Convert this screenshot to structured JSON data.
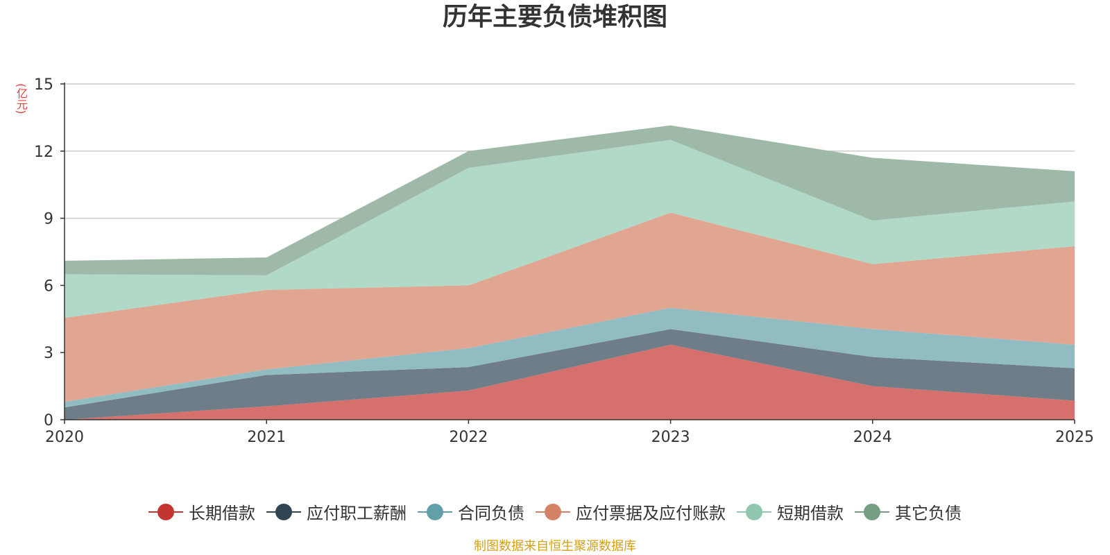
{
  "chart_data": {
    "type": "area",
    "stacked": true,
    "title": "历年主要负债堆积图",
    "ylabel": "(亿元)",
    "xlabel": "",
    "categories": [
      "2020",
      "2021",
      "2022",
      "2023",
      "2024",
      "2025"
    ],
    "y_ticks": [
      "0",
      "3",
      "6",
      "9",
      "12",
      "15"
    ],
    "ylim": [
      0,
      15
    ],
    "grid": true,
    "legend_position": "bottom",
    "series": [
      {
        "name": "长期借款",
        "color": "#c23531",
        "fill": "#d6706d",
        "values": [
          0.0,
          0.6,
          1.3,
          3.35,
          1.5,
          0.85
        ]
      },
      {
        "name": "应付职工薪酬",
        "color": "#2f4554",
        "fill": "#6f7d88",
        "values": [
          0.55,
          1.4,
          1.05,
          0.7,
          1.3,
          1.45
        ]
      },
      {
        "name": "合同负债",
        "color": "#61a0a8",
        "fill": "#90bcc2",
        "values": [
          0.25,
          0.25,
          0.85,
          0.95,
          1.25,
          1.05
        ]
      },
      {
        "name": "应付票据及应付账款",
        "color": "#d48265",
        "fill": "#e0a691",
        "values": [
          3.75,
          3.55,
          2.8,
          4.25,
          2.9,
          4.4
        ]
      },
      {
        "name": "短期借款",
        "color": "#91c7ae",
        "fill": "#b1d9c7",
        "values": [
          1.95,
          0.65,
          5.25,
          3.25,
          1.95,
          2.0
        ]
      },
      {
        "name": "其它负债",
        "color": "#749f83",
        "fill": "#9eb9a8",
        "values": [
          0.6,
          0.8,
          0.75,
          0.65,
          2.8,
          1.35
        ]
      }
    ]
  },
  "footer": "制图数据来自恒生聚源数据库"
}
